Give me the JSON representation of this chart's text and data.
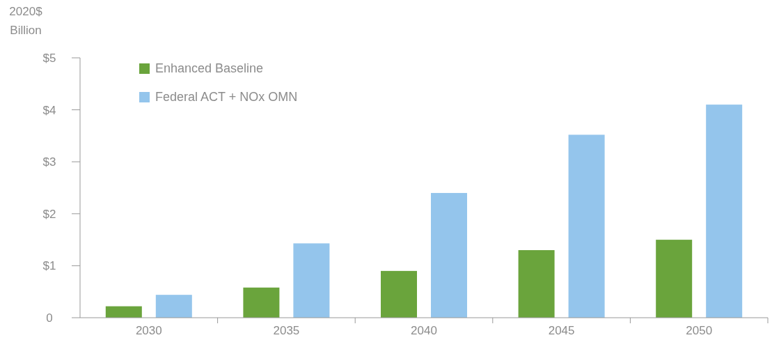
{
  "chart_data": {
    "type": "bar",
    "ylabel": "2020$ Billion",
    "categories": [
      "2030",
      "2035",
      "2040",
      "2045",
      "2050"
    ],
    "series": [
      {
        "name": "Enhanced Baseline",
        "color": "#6aa43c",
        "values": [
          0.22,
          0.58,
          0.9,
          1.3,
          1.5
        ]
      },
      {
        "name": "Federal ACT + NOx OMN",
        "color": "#94c5ec",
        "values": [
          0.44,
          1.43,
          2.4,
          3.52,
          4.1
        ]
      }
    ],
    "ylim": [
      0,
      5
    ],
    "yticks": [
      {
        "value": 0,
        "label": "0"
      },
      {
        "value": 1,
        "label": "$1"
      },
      {
        "value": 2,
        "label": "$2"
      },
      {
        "value": 3,
        "label": "$3"
      },
      {
        "value": 4,
        "label": "$4"
      },
      {
        "value": 5,
        "label": "$5"
      }
    ],
    "grid": false,
    "legend": "top left"
  }
}
